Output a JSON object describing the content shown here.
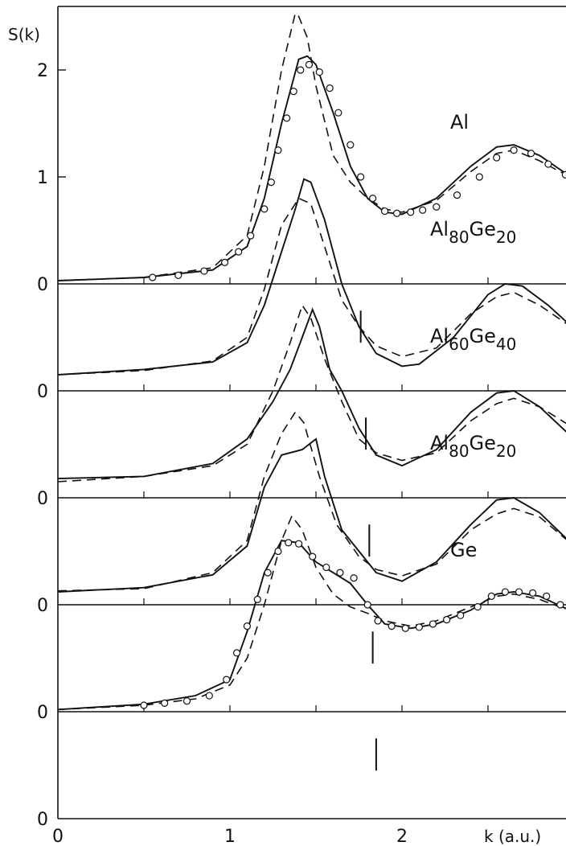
{
  "chart_data": {
    "type": "line",
    "title": "",
    "ylabel": "S(k)",
    "xlabel": "k (a.u.)",
    "xlim": [
      0,
      3.0
    ],
    "x_ticks": [
      "0",
      "1",
      "2"
    ],
    "y_ticks_top": [
      "1",
      "2"
    ],
    "baseline_label": "0",
    "offset_step": 1.0,
    "grid": false,
    "legend": "none",
    "series_style": {
      "solid": "solid",
      "dashed": "dashed",
      "circles": "open circles"
    },
    "panels": [
      {
        "label": "Al",
        "label_parts": [
          "Al"
        ],
        "offset": 5,
        "marker_k": 1.76,
        "solid": [
          [
            0,
            0.03
          ],
          [
            0.5,
            0.06
          ],
          [
            0.9,
            0.13
          ],
          [
            1.1,
            0.35
          ],
          [
            1.2,
            0.8
          ],
          [
            1.3,
            1.5
          ],
          [
            1.4,
            2.1
          ],
          [
            1.45,
            2.13
          ],
          [
            1.5,
            2.05
          ],
          [
            1.6,
            1.6
          ],
          [
            1.7,
            1.1
          ],
          [
            1.8,
            0.8
          ],
          [
            1.9,
            0.67
          ],
          [
            2.0,
            0.65
          ],
          [
            2.2,
            0.8
          ],
          [
            2.4,
            1.1
          ],
          [
            2.55,
            1.28
          ],
          [
            2.65,
            1.3
          ],
          [
            2.8,
            1.2
          ],
          [
            3.0,
            0.98
          ]
        ],
        "dashed": [
          [
            0,
            0.03
          ],
          [
            0.5,
            0.06
          ],
          [
            0.9,
            0.15
          ],
          [
            1.1,
            0.45
          ],
          [
            1.2,
            1.1
          ],
          [
            1.3,
            2.0
          ],
          [
            1.38,
            2.53
          ],
          [
            1.4,
            2.5
          ],
          [
            1.45,
            2.3
          ],
          [
            1.5,
            1.85
          ],
          [
            1.6,
            1.2
          ],
          [
            1.7,
            0.95
          ],
          [
            1.8,
            0.8
          ],
          [
            1.9,
            0.7
          ],
          [
            2.0,
            0.67
          ],
          [
            2.2,
            0.78
          ],
          [
            2.4,
            1.05
          ],
          [
            2.55,
            1.22
          ],
          [
            2.65,
            1.25
          ],
          [
            2.8,
            1.15
          ],
          [
            3.0,
            0.98
          ]
        ],
        "circles": [
          [
            0.55,
            0.06
          ],
          [
            0.7,
            0.08
          ],
          [
            0.85,
            0.12
          ],
          [
            0.97,
            0.2
          ],
          [
            1.05,
            0.3
          ],
          [
            1.12,
            0.45
          ],
          [
            1.2,
            0.7
          ],
          [
            1.24,
            0.95
          ],
          [
            1.28,
            1.25
          ],
          [
            1.33,
            1.55
          ],
          [
            1.37,
            1.8
          ],
          [
            1.41,
            2.0
          ],
          [
            1.46,
            2.05
          ],
          [
            1.52,
            1.98
          ],
          [
            1.58,
            1.83
          ],
          [
            1.63,
            1.6
          ],
          [
            1.7,
            1.3
          ],
          [
            1.76,
            1.0
          ],
          [
            1.83,
            0.8
          ],
          [
            1.9,
            0.68
          ],
          [
            1.97,
            0.66
          ],
          [
            2.05,
            0.67
          ],
          [
            2.12,
            0.69
          ],
          [
            2.2,
            0.72
          ],
          [
            2.32,
            0.83
          ],
          [
            2.45,
            1.0
          ],
          [
            2.55,
            1.18
          ],
          [
            2.65,
            1.25
          ],
          [
            2.75,
            1.22
          ],
          [
            2.85,
            1.12
          ],
          [
            2.95,
            1.02
          ]
        ]
      },
      {
        "label": "Al80Ge20",
        "label_parts": [
          "Al",
          "80",
          "Ge",
          "20"
        ],
        "offset": 4,
        "marker_k": 1.79,
        "solid": [
          [
            0,
            0.15
          ],
          [
            0.5,
            0.2
          ],
          [
            0.9,
            0.27
          ],
          [
            1.1,
            0.45
          ],
          [
            1.2,
            0.8
          ],
          [
            1.3,
            1.3
          ],
          [
            1.38,
            1.7
          ],
          [
            1.43,
            1.98
          ],
          [
            1.47,
            1.95
          ],
          [
            1.55,
            1.6
          ],
          [
            1.65,
            1.0
          ],
          [
            1.75,
            0.6
          ],
          [
            1.85,
            0.35
          ],
          [
            2.0,
            0.23
          ],
          [
            2.1,
            0.25
          ],
          [
            2.3,
            0.5
          ],
          [
            2.5,
            0.9
          ],
          [
            2.6,
            1.0
          ],
          [
            2.7,
            0.98
          ],
          [
            2.85,
            0.8
          ],
          [
            3.0,
            0.58
          ]
        ],
        "dashed": [
          [
            0,
            0.15
          ],
          [
            0.5,
            0.19
          ],
          [
            0.9,
            0.28
          ],
          [
            1.1,
            0.5
          ],
          [
            1.2,
            0.95
          ],
          [
            1.3,
            1.55
          ],
          [
            1.4,
            1.8
          ],
          [
            1.47,
            1.75
          ],
          [
            1.55,
            1.35
          ],
          [
            1.65,
            0.85
          ],
          [
            1.75,
            0.6
          ],
          [
            1.85,
            0.42
          ],
          [
            2.0,
            0.32
          ],
          [
            2.2,
            0.4
          ],
          [
            2.4,
            0.72
          ],
          [
            2.55,
            0.88
          ],
          [
            2.65,
            0.92
          ],
          [
            2.8,
            0.8
          ],
          [
            3.0,
            0.58
          ]
        ]
      },
      {
        "label": "Al60Ge40",
        "label_parts": [
          "Al",
          "60",
          "Ge",
          "40"
        ],
        "offset": 3,
        "marker_k": 1.81,
        "solid": [
          [
            0,
            0.18
          ],
          [
            0.5,
            0.2
          ],
          [
            0.9,
            0.32
          ],
          [
            1.1,
            0.55
          ],
          [
            1.25,
            0.9
          ],
          [
            1.35,
            1.2
          ],
          [
            1.42,
            1.5
          ],
          [
            1.48,
            1.76
          ],
          [
            1.52,
            1.6
          ],
          [
            1.58,
            1.2
          ],
          [
            1.65,
            1.0
          ],
          [
            1.75,
            0.65
          ],
          [
            1.85,
            0.4
          ],
          [
            2.0,
            0.3
          ],
          [
            2.2,
            0.45
          ],
          [
            2.4,
            0.8
          ],
          [
            2.55,
            0.98
          ],
          [
            2.65,
            1.0
          ],
          [
            2.8,
            0.85
          ],
          [
            3.0,
            0.55
          ]
        ],
        "dashed": [
          [
            0,
            0.15
          ],
          [
            0.5,
            0.2
          ],
          [
            0.9,
            0.3
          ],
          [
            1.1,
            0.5
          ],
          [
            1.25,
            1.0
          ],
          [
            1.35,
            1.45
          ],
          [
            1.42,
            1.8
          ],
          [
            1.47,
            1.68
          ],
          [
            1.55,
            1.3
          ],
          [
            1.65,
            0.9
          ],
          [
            1.75,
            0.55
          ],
          [
            1.85,
            0.42
          ],
          [
            2.0,
            0.35
          ],
          [
            2.2,
            0.42
          ],
          [
            2.4,
            0.72
          ],
          [
            2.55,
            0.88
          ],
          [
            2.65,
            0.93
          ],
          [
            2.8,
            0.85
          ],
          [
            3.0,
            0.65
          ]
        ]
      },
      {
        "label": "Al80Ge20",
        "label_parts": [
          "Al",
          "80",
          "Ge",
          "20"
        ],
        "offset": 2,
        "marker_k": 1.83,
        "solid": [
          [
            0,
            0.12
          ],
          [
            0.5,
            0.16
          ],
          [
            0.9,
            0.28
          ],
          [
            1.1,
            0.55
          ],
          [
            1.2,
            1.1
          ],
          [
            1.3,
            1.4
          ],
          [
            1.42,
            1.45
          ],
          [
            1.5,
            1.55
          ],
          [
            1.55,
            1.2
          ],
          [
            1.65,
            0.7
          ],
          [
            1.75,
            0.5
          ],
          [
            1.85,
            0.3
          ],
          [
            2.0,
            0.22
          ],
          [
            2.2,
            0.4
          ],
          [
            2.4,
            0.75
          ],
          [
            2.55,
            0.98
          ],
          [
            2.65,
            1.0
          ],
          [
            2.8,
            0.86
          ],
          [
            3.0,
            0.55
          ]
        ],
        "dashed": [
          [
            0,
            0.13
          ],
          [
            0.5,
            0.15
          ],
          [
            0.9,
            0.3
          ],
          [
            1.1,
            0.6
          ],
          [
            1.2,
            1.2
          ],
          [
            1.3,
            1.6
          ],
          [
            1.38,
            1.8
          ],
          [
            1.43,
            1.7
          ],
          [
            1.52,
            1.2
          ],
          [
            1.62,
            0.75
          ],
          [
            1.75,
            0.45
          ],
          [
            1.85,
            0.33
          ],
          [
            2.0,
            0.27
          ],
          [
            2.2,
            0.38
          ],
          [
            2.4,
            0.7
          ],
          [
            2.55,
            0.85
          ],
          [
            2.65,
            0.9
          ],
          [
            2.8,
            0.82
          ],
          [
            3.0,
            0.55
          ]
        ]
      },
      {
        "label": "Ge",
        "label_parts": [
          "Ge"
        ],
        "offset": 1,
        "marker_k": 1.85,
        "solid": [
          [
            0,
            0.02
          ],
          [
            0.5,
            0.07
          ],
          [
            0.8,
            0.15
          ],
          [
            1.0,
            0.3
          ],
          [
            1.1,
            0.75
          ],
          [
            1.2,
            1.3
          ],
          [
            1.3,
            1.6
          ],
          [
            1.4,
            1.58
          ],
          [
            1.5,
            1.4
          ],
          [
            1.6,
            1.3
          ],
          [
            1.7,
            1.2
          ],
          [
            1.8,
            1.0
          ],
          [
            1.9,
            0.82
          ],
          [
            2.05,
            0.78
          ],
          [
            2.2,
            0.82
          ],
          [
            2.4,
            0.95
          ],
          [
            2.55,
            1.1
          ],
          [
            2.65,
            1.12
          ],
          [
            2.8,
            1.08
          ],
          [
            3.0,
            0.93
          ]
        ],
        "dashed": [
          [
            0,
            0.02
          ],
          [
            0.5,
            0.06
          ],
          [
            0.8,
            0.12
          ],
          [
            1.0,
            0.25
          ],
          [
            1.1,
            0.5
          ],
          [
            1.2,
            1.0
          ],
          [
            1.3,
            1.6
          ],
          [
            1.36,
            1.83
          ],
          [
            1.42,
            1.7
          ],
          [
            1.5,
            1.35
          ],
          [
            1.6,
            1.1
          ],
          [
            1.7,
            0.98
          ],
          [
            1.8,
            0.92
          ],
          [
            1.9,
            0.85
          ],
          [
            2.05,
            0.8
          ],
          [
            2.2,
            0.85
          ],
          [
            2.4,
            0.98
          ],
          [
            2.55,
            1.08
          ],
          [
            2.65,
            1.1
          ],
          [
            2.8,
            1.05
          ],
          [
            3.0,
            0.93
          ]
        ],
        "circles": [
          [
            0.5,
            0.06
          ],
          [
            0.62,
            0.08
          ],
          [
            0.75,
            0.1
          ],
          [
            0.88,
            0.15
          ],
          [
            0.98,
            0.3
          ],
          [
            1.04,
            0.55
          ],
          [
            1.1,
            0.8
          ],
          [
            1.16,
            1.05
          ],
          [
            1.22,
            1.3
          ],
          [
            1.28,
            1.5
          ],
          [
            1.34,
            1.58
          ],
          [
            1.4,
            1.57
          ],
          [
            1.48,
            1.45
          ],
          [
            1.56,
            1.35
          ],
          [
            1.64,
            1.3
          ],
          [
            1.72,
            1.25
          ],
          [
            1.8,
            1.0
          ],
          [
            1.86,
            0.85
          ],
          [
            1.94,
            0.8
          ],
          [
            2.02,
            0.78
          ],
          [
            2.1,
            0.79
          ],
          [
            2.18,
            0.82
          ],
          [
            2.26,
            0.86
          ],
          [
            2.34,
            0.9
          ],
          [
            2.44,
            0.98
          ],
          [
            2.52,
            1.08
          ],
          [
            2.6,
            1.12
          ],
          [
            2.68,
            1.12
          ],
          [
            2.76,
            1.11
          ],
          [
            2.84,
            1.08
          ],
          [
            2.92,
            1.0
          ]
        ]
      }
    ]
  }
}
